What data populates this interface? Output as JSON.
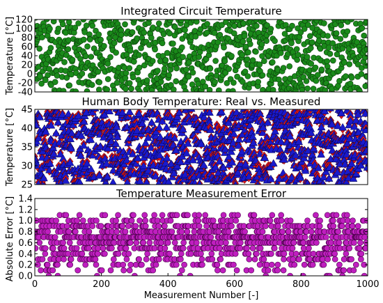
{
  "chart_data": [
    {
      "type": "scatter",
      "title": "Integrated Circuit Temperature",
      "xlabel": "",
      "ylabel": "Temperature [°C]",
      "xlim": [
        0,
        1000
      ],
      "ylim": [
        -40,
        120
      ],
      "yticks": [
        -40,
        -20,
        0,
        20,
        40,
        60,
        80,
        100,
        120
      ],
      "grid": false,
      "series": [
        {
          "marker": "circle",
          "color": "#1a8a1a",
          "count": 1000,
          "distribution": "uniform",
          "range": [
            -40,
            125
          ]
        }
      ]
    },
    {
      "type": "scatter",
      "title": "Human Body Temperature: Real vs. Measured",
      "xlabel": "",
      "ylabel": "Temperature [°C]",
      "xlim": [
        0,
        1000
      ],
      "ylim": [
        25,
        45
      ],
      "yticks": [
        25,
        30,
        35,
        40,
        45
      ],
      "grid": false,
      "series": [
        {
          "marker": "diamond",
          "color": "#e0191c",
          "count": 1000,
          "distribution": "uniform",
          "range": [
            25,
            45
          ]
        },
        {
          "marker": "triangle",
          "color": "#1a1acc",
          "count": 1000,
          "distribution": "uniform",
          "range": [
            25,
            45
          ]
        }
      ]
    },
    {
      "type": "scatter",
      "title": "Temperature Measurement Error",
      "xlabel": "Measurement Number [-]",
      "ylabel": "Absolute Error [°C]",
      "xlim": [
        0,
        1000
      ],
      "ylim": [
        0.0,
        1.4
      ],
      "yticks": [
        0.0,
        0.2,
        0.4,
        0.6,
        0.8,
        1.0,
        1.2,
        1.4
      ],
      "xticks": [
        0,
        200,
        400,
        600,
        800,
        1000
      ],
      "grid": false,
      "series": [
        {
          "marker": "circle",
          "color": "#bf1fbf",
          "count": 1000,
          "distribution": "discrete",
          "levels": [
            0.0,
            0.1,
            0.2,
            0.3,
            0.4,
            0.5,
            0.6,
            0.7,
            0.8,
            0.9,
            1.0,
            1.1
          ],
          "dense_level": 0.7
        }
      ]
    }
  ]
}
